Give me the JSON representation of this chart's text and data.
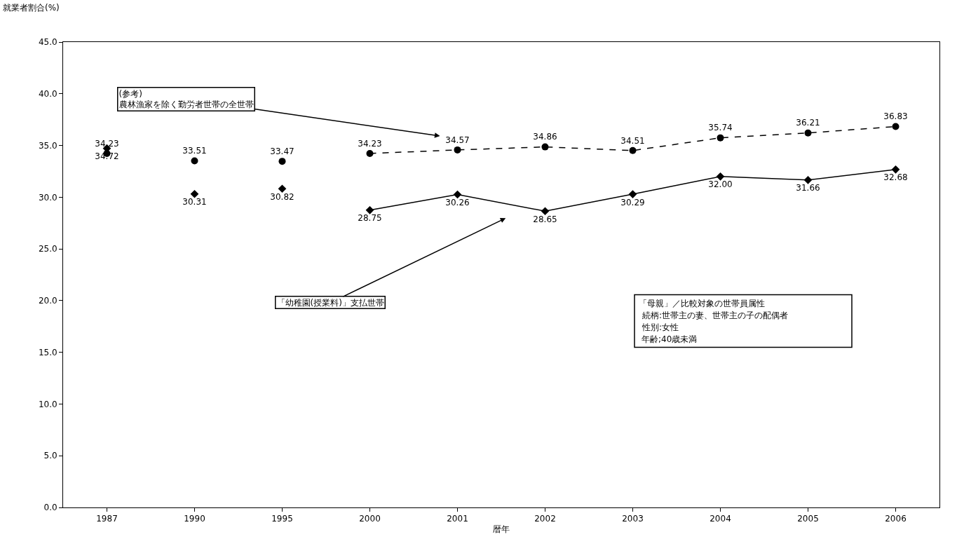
{
  "chart_data": {
    "type": "line",
    "xlabel": "暦年",
    "ylabel": "就業者割合(%)",
    "categories": [
      "1987",
      "1990",
      "1995",
      "2000",
      "2001",
      "2002",
      "2003",
      "2004",
      "2005",
      "2006"
    ],
    "series": [
      {
        "type": "scatter",
        "color": "#000000",
        "marker": "circle",
        "values": [
          34.23,
          33.51,
          33.47,
          null,
          null,
          null,
          null,
          null,
          null,
          null
        ],
        "value_labels": [
          "34.23",
          "33.51",
          "33.47",
          null,
          null,
          null,
          null,
          null,
          null,
          null
        ]
      },
      {
        "type": "scatter",
        "color": "#000000",
        "marker": "diamond",
        "values": [
          34.72,
          30.31,
          30.82,
          null,
          null,
          null,
          null,
          null,
          null,
          null
        ],
        "value_labels": [
          "34.72",
          "30.31",
          "30.82",
          null,
          null,
          null,
          null,
          null,
          null,
          null
        ]
      },
      {
        "name": "(参考)\n農林漁家を除く勤労者世帯の全世帯",
        "color": "#000000",
        "marker": "circle",
        "line_style": "dashed",
        "values": [
          null,
          null,
          null,
          34.23,
          34.57,
          34.86,
          34.51,
          35.74,
          36.21,
          36.83
        ],
        "value_labels": [
          null,
          null,
          null,
          "34.23",
          "34.57",
          "34.86",
          "34.51",
          "35.74",
          "36.21",
          "36.83"
        ]
      },
      {
        "name": "「幼稚園(授業料)」支払世帯",
        "color": "#000000",
        "marker": "diamond",
        "line_style": "solid",
        "values": [
          null,
          null,
          null,
          28.75,
          30.26,
          28.65,
          30.29,
          32.0,
          31.66,
          32.68
        ],
        "value_labels": [
          null,
          null,
          null,
          "28.75",
          "30.26",
          "28.65",
          "30.29",
          "32.00",
          "31.66",
          "32.68"
        ]
      }
    ],
    "ylim": [
      0,
      45
    ],
    "yticks": [
      {
        "value": 0,
        "label": "0.0"
      },
      {
        "value": 5,
        "label": "5.0"
      },
      {
        "value": 10,
        "label": "10.0"
      },
      {
        "value": 15,
        "label": "15.0"
      },
      {
        "value": 20,
        "label": "20.0"
      },
      {
        "value": 25,
        "label": "25.0"
      },
      {
        "value": 30,
        "label": "30.0"
      },
      {
        "value": 35,
        "label": "35.0"
      },
      {
        "value": 40,
        "label": "40.0"
      },
      {
        "value": 45,
        "label": "45.0"
      }
    ],
    "annotations": [
      "「母親」／比較対象の世帯員属性",
      "続柄:世帯主の妻、世帯主の子の配偶者",
      "性別:女性",
      "年齢;40歳未満"
    ]
  }
}
